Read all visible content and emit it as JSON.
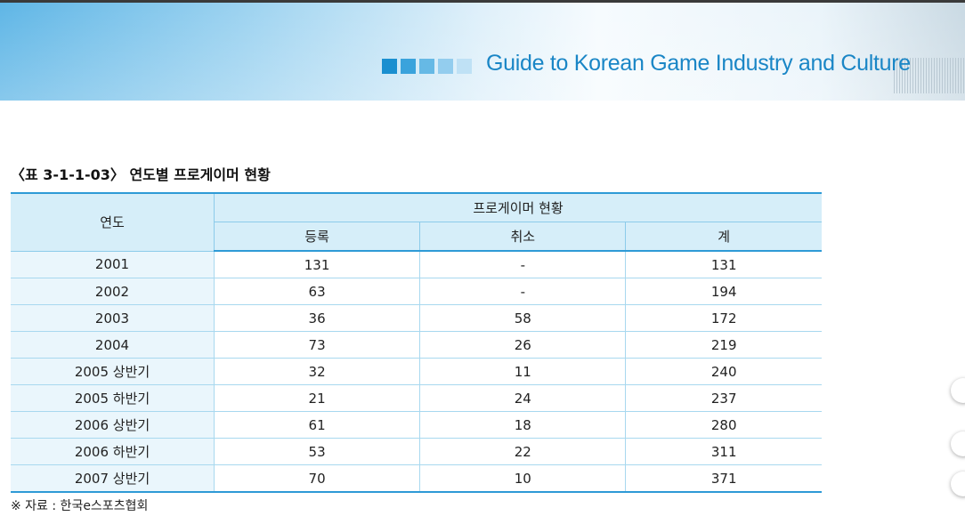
{
  "header": {
    "title": "Guide to Korean Game Industry and Culture"
  },
  "caption": "〈표 3-1-1-03〉 연도별 프로게이머 현황",
  "table": {
    "header": {
      "year": "연도",
      "group": "프로게이머 현황",
      "columns": [
        "등록",
        "취소",
        "계"
      ]
    },
    "rows": [
      [
        "2001",
        "131",
        "-",
        "131"
      ],
      [
        "2002",
        "63",
        "-",
        "194"
      ],
      [
        "2003",
        "36",
        "58",
        "172"
      ],
      [
        "2004",
        "73",
        "26",
        "219"
      ],
      [
        "2005 상반기",
        "32",
        "11",
        "240"
      ],
      [
        "2005 하반기",
        "21",
        "24",
        "237"
      ],
      [
        "2006 상반기",
        "61",
        "18",
        "280"
      ],
      [
        "2006 하반기",
        "53",
        "22",
        "311"
      ],
      [
        "2007 상반기",
        "70",
        "10",
        "371"
      ]
    ]
  },
  "source": "※ 자료 : 한국e스포츠협회"
}
